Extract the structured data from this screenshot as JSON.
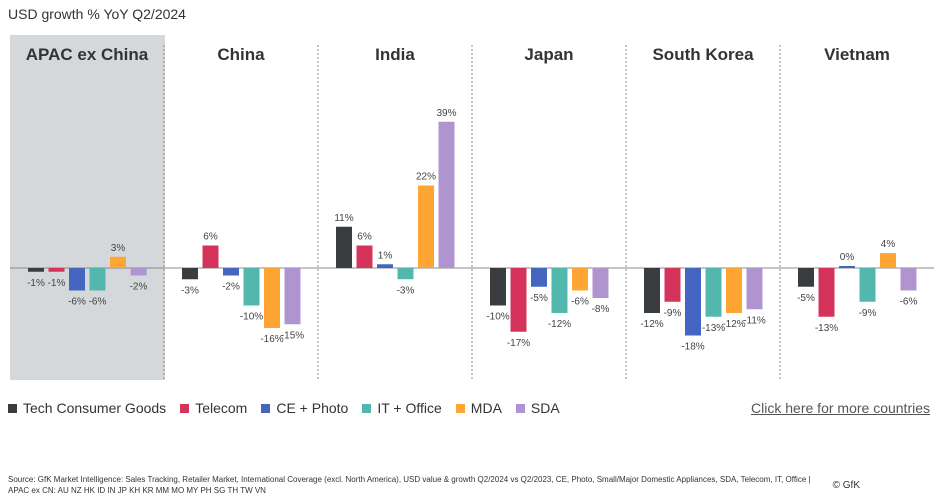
{
  "chart_data": {
    "type": "bar",
    "title": "USD growth % YoY Q2/2024",
    "unit": "%",
    "highlighted_panel": "APAC ex China",
    "panels": [
      "APAC ex China",
      "China",
      "India",
      "Japan",
      "South Korea",
      "Vietnam"
    ],
    "series": [
      {
        "name": "Tech Consumer Goods",
        "color": "#3a3d40",
        "values": [
          -1,
          -3,
          11,
          -10,
          -12,
          -5
        ]
      },
      {
        "name": "Telecom",
        "color": "#d6335c",
        "values": [
          -1,
          6,
          6,
          -17,
          -9,
          -13
        ]
      },
      {
        "name": "CE + Photo",
        "color": "#4466c0",
        "values": [
          -6,
          -2,
          1,
          -5,
          -18,
          0
        ]
      },
      {
        "name": "IT + Office",
        "color": "#52b8ae",
        "values": [
          -6,
          -10,
          -3,
          -12,
          -13,
          -9
        ]
      },
      {
        "name": "MDA",
        "color": "#ffa533",
        "values": [
          3,
          -16,
          22,
          -6,
          -12,
          4
        ]
      },
      {
        "name": "SDA",
        "color": "#b094d0",
        "values": [
          -2,
          -15,
          39,
          -8,
          -11,
          -6
        ]
      }
    ],
    "legend_position": "bottom-left",
    "grid": false
  },
  "link": "Click here for more countries",
  "source": "Source: GfK Market Intelligence: Sales Tracking, Retailer Market, International Coverage (excl. North America), USD value & growth Q2/2024 vs Q2/2023, CE, Photo, Small/Major Domestic Appliances, SDA, Telecom, IT, Office | APAC ex CN: AU NZ HK ID IN JP KH KR MM MO MY PH SG TH TW VN",
  "copyright": "© GfK"
}
